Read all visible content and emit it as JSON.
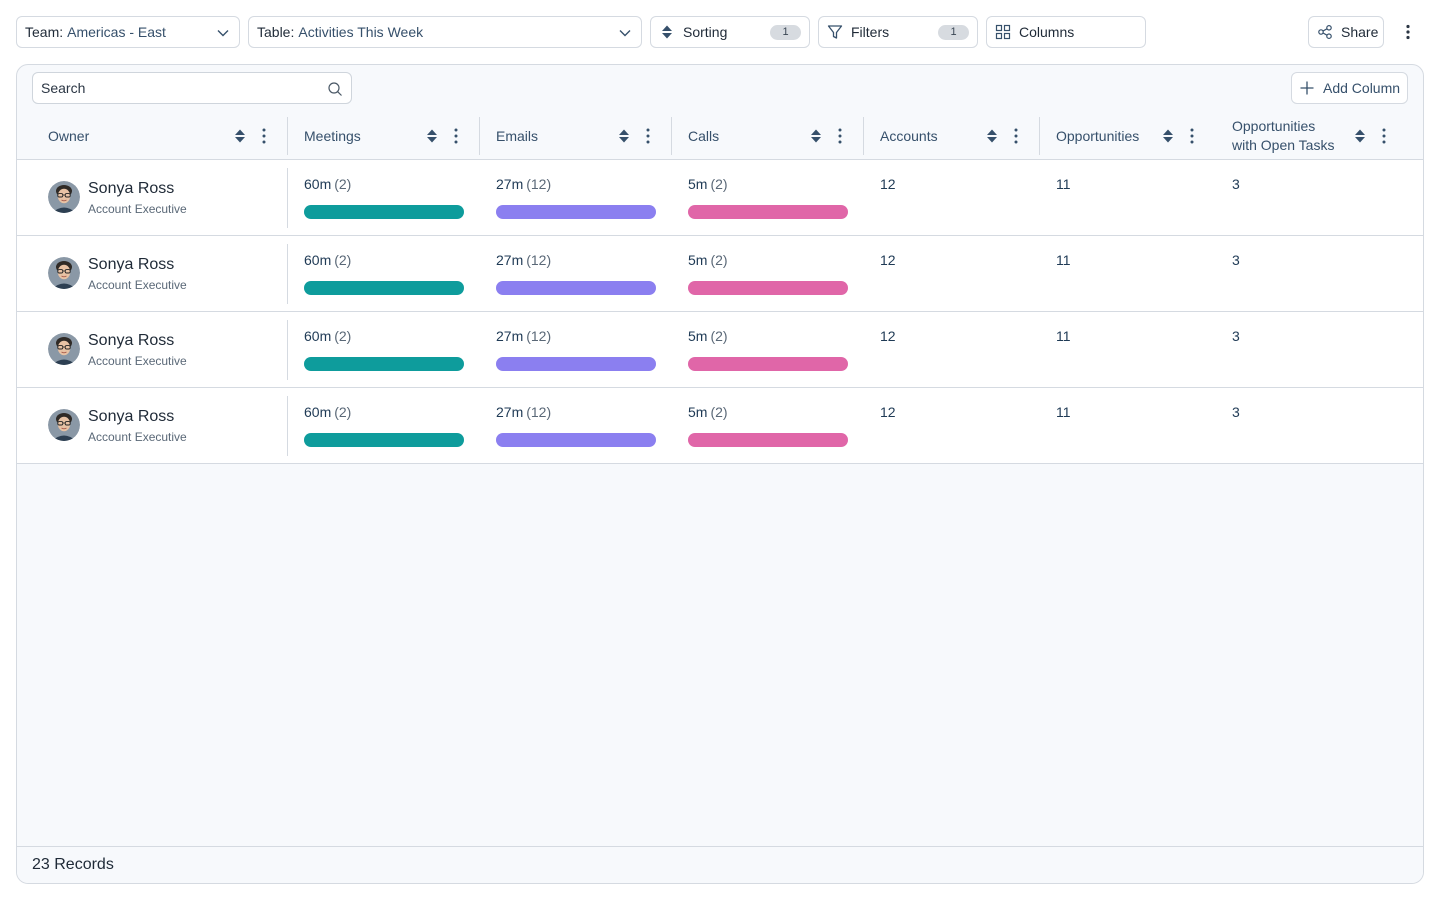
{
  "toolbar": {
    "team": {
      "key": "Team:",
      "value": "Americas - East"
    },
    "table": {
      "key": "Table:",
      "value": "Activities This Week"
    },
    "sorting": {
      "label": "Sorting",
      "count": "1"
    },
    "filters": {
      "label": "Filters",
      "count": "1"
    },
    "columns": {
      "label": "Columns"
    },
    "share": {
      "label": "Share"
    }
  },
  "panel": {
    "search": {
      "placeholder": "Search",
      "value": ""
    },
    "add_column_label": "Add Column"
  },
  "columns": [
    {
      "key": "owner",
      "label": "Owner"
    },
    {
      "key": "meetings",
      "label": "Meetings"
    },
    {
      "key": "emails",
      "label": "Emails"
    },
    {
      "key": "calls",
      "label": "Calls"
    },
    {
      "key": "accounts",
      "label": "Accounts"
    },
    {
      "key": "opportunities",
      "label": "Opportunities"
    },
    {
      "key": "open_tasks",
      "label": "Opportunities with Open Tasks"
    }
  ],
  "colors": {
    "meetings_bar": "#0e9c9c",
    "emails_bar": "#8b7ff0",
    "calls_bar": "#e066a8",
    "border": "#d5dae1",
    "panel_bg": "#f7f9fc"
  },
  "rows": [
    {
      "owner_name": "Sonya Ross",
      "owner_role": "Account Executive",
      "meetings": {
        "time": "60m",
        "count": "(2)"
      },
      "emails": {
        "time": "27m",
        "count": "(12)"
      },
      "calls": {
        "time": "5m",
        "count": "(2)"
      },
      "accounts": "12",
      "opportunities": "11",
      "open_tasks": "3"
    },
    {
      "owner_name": "Sonya Ross",
      "owner_role": "Account Executive",
      "meetings": {
        "time": "60m",
        "count": "(2)"
      },
      "emails": {
        "time": "27m",
        "count": "(12)"
      },
      "calls": {
        "time": "5m",
        "count": "(2)"
      },
      "accounts": "12",
      "opportunities": "11",
      "open_tasks": "3"
    },
    {
      "owner_name": "Sonya Ross",
      "owner_role": "Account Executive",
      "meetings": {
        "time": "60m",
        "count": "(2)"
      },
      "emails": {
        "time": "27m",
        "count": "(12)"
      },
      "calls": {
        "time": "5m",
        "count": "(2)"
      },
      "accounts": "12",
      "opportunities": "11",
      "open_tasks": "3"
    },
    {
      "owner_name": "Sonya Ross",
      "owner_role": "Account Executive",
      "meetings": {
        "time": "60m",
        "count": "(2)"
      },
      "emails": {
        "time": "27m",
        "count": "(12)"
      },
      "calls": {
        "time": "5m",
        "count": "(2)"
      },
      "accounts": "12",
      "opportunities": "11",
      "open_tasks": "3"
    }
  ],
  "footer": {
    "records_label": "23 Records"
  }
}
